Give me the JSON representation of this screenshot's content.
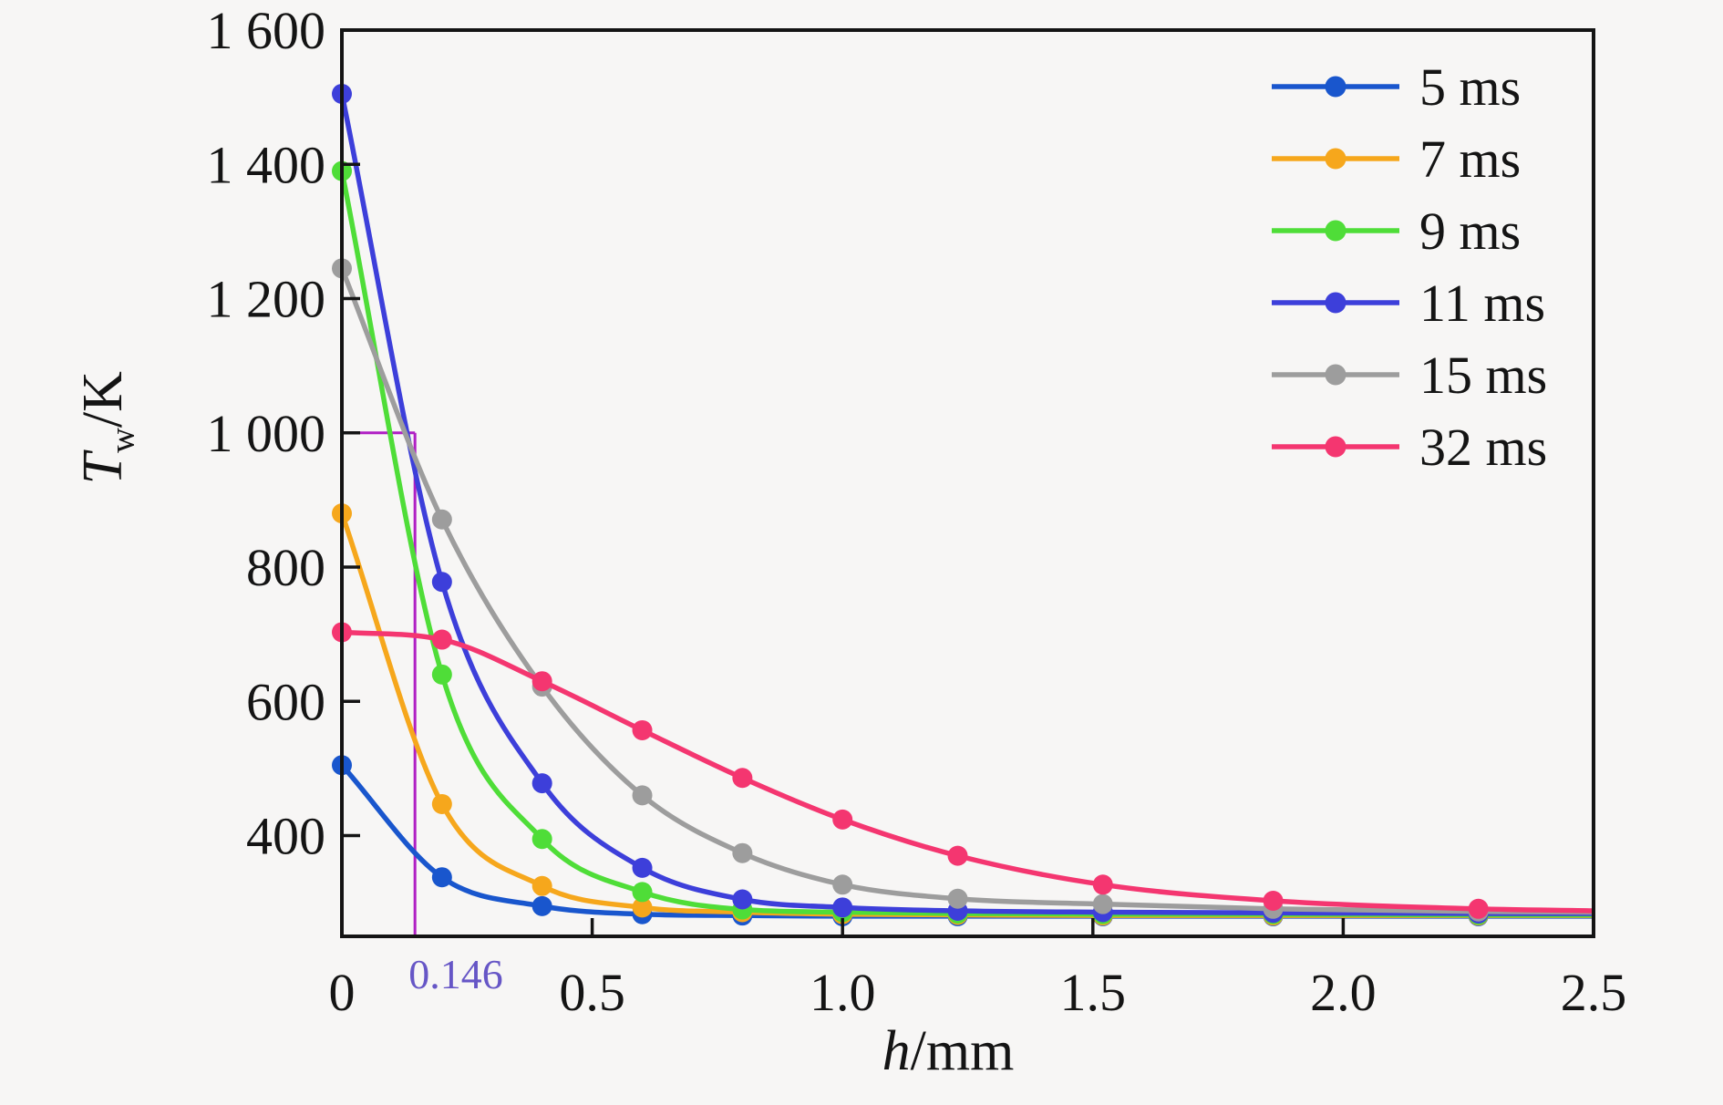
{
  "figure": {
    "background": "#f7f6f5",
    "axis_color": "#141414"
  },
  "chart_data": {
    "type": "line",
    "title": "",
    "xlabel_parts": {
      "italic": "h",
      "rest": "/mm"
    },
    "ylabel_parts": {
      "italic": "T",
      "sub": "w",
      "rest": "/K"
    },
    "xlim": [
      0,
      2.5
    ],
    "ylim": [
      250,
      1600
    ],
    "grid": false,
    "legend_position": "top-right-inside",
    "x_tick_values": [
      0,
      0.5,
      1.0,
      1.5,
      2.0,
      2.5
    ],
    "x_tick_labels": [
      "0",
      "0.5",
      "1.0",
      "1.5",
      "2.0",
      "2.5"
    ],
    "y_tick_values": [
      400,
      600,
      800,
      1000,
      1200,
      1400,
      1600
    ],
    "y_tick_labels": [
      "400",
      "600",
      "800",
      "1 000",
      "1 200",
      "1 400",
      "1 600"
    ],
    "x": [
      0,
      0.2,
      0.4,
      0.6,
      0.8,
      1.0,
      1.23,
      1.52,
      1.86,
      2.27,
      2.5
    ],
    "marker_point_count": 10,
    "series": [
      {
        "name": "5 ms",
        "color": "#1956cd",
        "values": [
          505,
          338,
          295,
          283,
          281,
          280,
          280,
          280,
          280,
          280,
          280
        ]
      },
      {
        "name": "7 ms",
        "color": "#f6a71c",
        "values": [
          880,
          447,
          325,
          293,
          286,
          283,
          282,
          281,
          281,
          281,
          281
        ]
      },
      {
        "name": "9 ms",
        "color": "#4fdd38",
        "values": [
          1390,
          640,
          395,
          316,
          290,
          286,
          284,
          283,
          283,
          282,
          282
        ]
      },
      {
        "name": "11 ms",
        "color": "#3d3fda",
        "values": [
          1505,
          778,
          478,
          352,
          305,
          293,
          288,
          286,
          285,
          284,
          284
        ]
      },
      {
        "name": "15 ms",
        "color": "#9d9d9d",
        "values": [
          1245,
          871,
          622,
          460,
          374,
          327,
          306,
          298,
          291,
          287,
          286
        ]
      },
      {
        "name": "32 ms",
        "color": "#f43670",
        "values": [
          703,
          692,
          630,
          557,
          486,
          424,
          370,
          327,
          303,
          291,
          288
        ]
      }
    ],
    "reference": {
      "x": 0.146,
      "y": 1000,
      "label": "0.146",
      "line_color": "#b01fc4",
      "label_color": "#6656c6"
    }
  }
}
